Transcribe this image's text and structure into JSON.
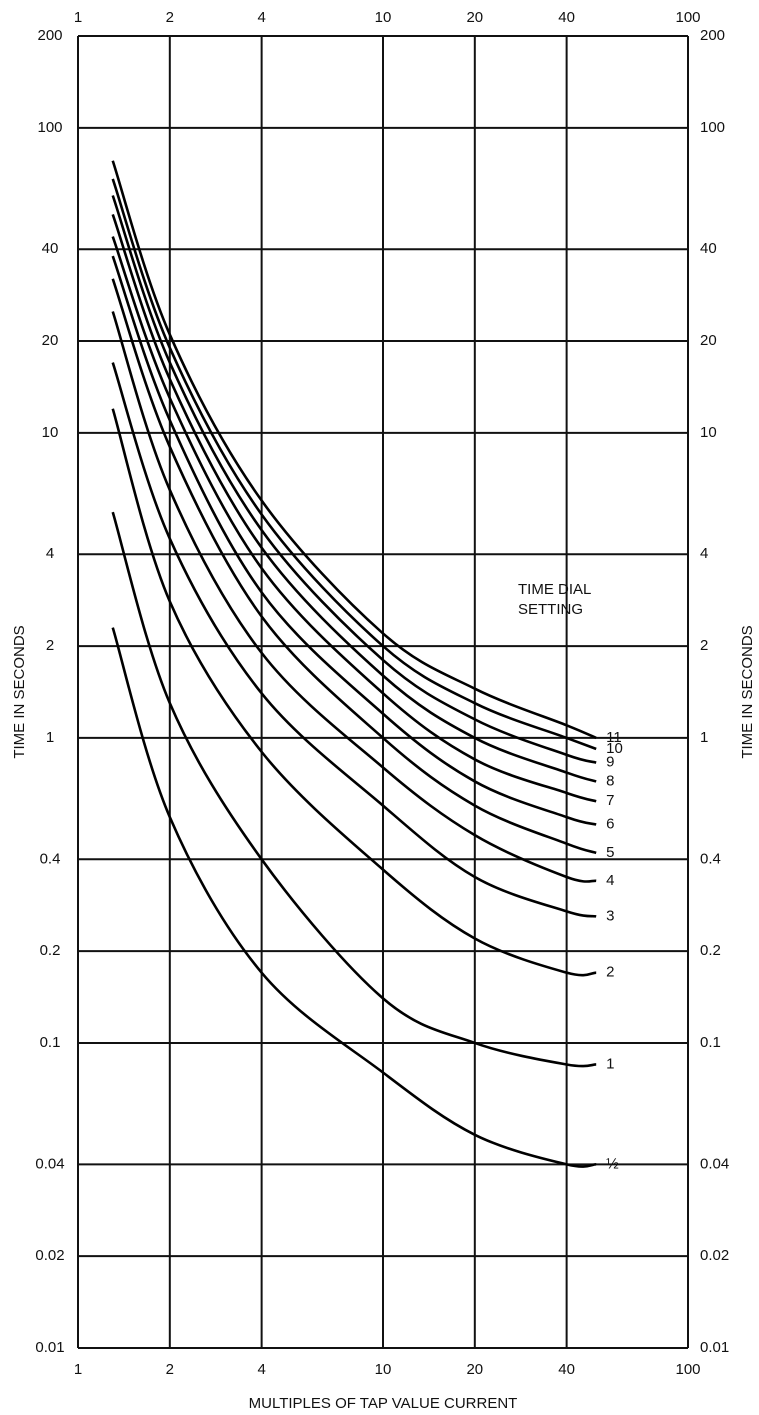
{
  "chart_data": {
    "type": "line",
    "xlabel": "MULTIPLES OF TAP VALUE CURRENT",
    "ylabel": "TIME IN SECONDS",
    "legend_title_lines": [
      "TIME DIAL",
      "SETTING"
    ],
    "log_x": true,
    "log_y": true,
    "grid": true,
    "xlim": [
      1,
      100
    ],
    "xticks": [
      1,
      2,
      4,
      10,
      20,
      40,
      100
    ],
    "ylim": [
      0.01,
      200
    ],
    "yticks": [
      200,
      100,
      40,
      20,
      10,
      4,
      2,
      1,
      0.4,
      0.2,
      0.1,
      0.04,
      0.02,
      0.01
    ],
    "x": [
      1.3,
      2,
      4,
      10,
      20,
      40,
      50
    ],
    "series": [
      {
        "name": "½",
        "color": "#000000",
        "values": [
          2.3,
          0.55,
          0.17,
          0.08,
          0.05,
          0.04,
          0.04
        ]
      },
      {
        "name": "1",
        "color": "#000000",
        "values": [
          5.5,
          1.3,
          0.4,
          0.14,
          0.1,
          0.085,
          0.085
        ]
      },
      {
        "name": "2",
        "color": "#000000",
        "values": [
          12,
          2.8,
          0.9,
          0.37,
          0.22,
          0.17,
          0.17
        ]
      },
      {
        "name": "3",
        "color": "#000000",
        "values": [
          17,
          4.5,
          1.4,
          0.6,
          0.35,
          0.27,
          0.26
        ]
      },
      {
        "name": "4",
        "color": "#000000",
        "values": [
          25,
          6.5,
          1.9,
          0.8,
          0.48,
          0.35,
          0.34
        ]
      },
      {
        "name": "5",
        "color": "#000000",
        "values": [
          32,
          9,
          2.5,
          1.0,
          0.6,
          0.45,
          0.42
        ]
      },
      {
        "name": "6",
        "color": "#000000",
        "values": [
          38,
          11,
          3,
          1.2,
          0.72,
          0.55,
          0.52
        ]
      },
      {
        "name": "7",
        "color": "#000000",
        "values": [
          44,
          13,
          3.6,
          1.4,
          0.85,
          0.66,
          0.62
        ]
      },
      {
        "name": "8",
        "color": "#000000",
        "values": [
          52,
          15,
          4.2,
          1.6,
          1.0,
          0.77,
          0.72
        ]
      },
      {
        "name": "9",
        "color": "#000000",
        "values": [
          60,
          17,
          4.8,
          1.8,
          1.15,
          0.88,
          0.83
        ]
      },
      {
        "name": "10",
        "color": "#000000",
        "values": [
          68,
          19,
          5.4,
          2.0,
          1.3,
          1.0,
          0.92
        ]
      },
      {
        "name": "11",
        "color": "#000000",
        "values": [
          78,
          21,
          6,
          2.2,
          1.45,
          1.1,
          1.0
        ]
      }
    ]
  }
}
